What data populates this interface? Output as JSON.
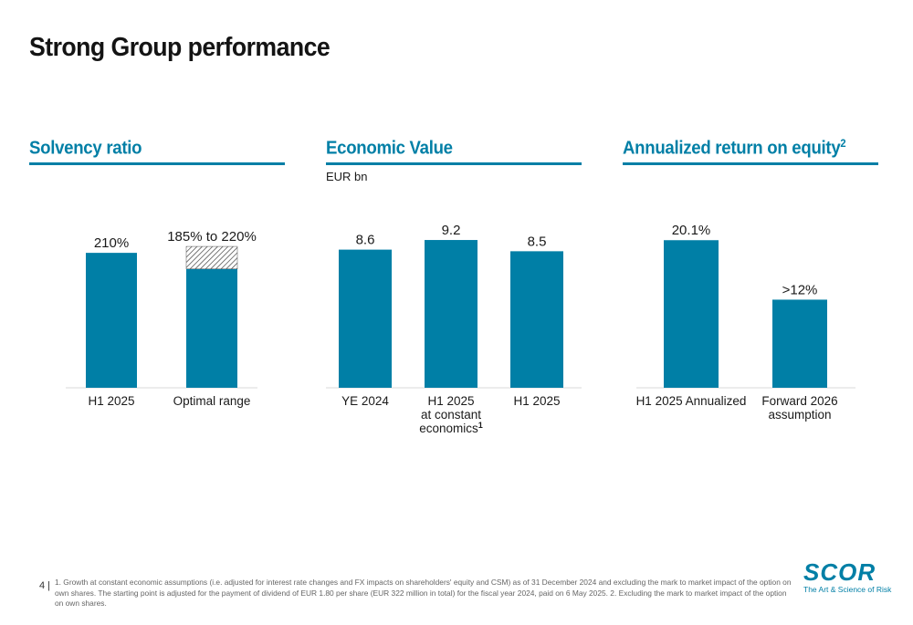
{
  "page": {
    "title": "Strong Group performance",
    "page_number": "4 |",
    "footnote": "1. Growth at constant economic assumptions (i.e. adjusted for interest rate changes and FX impacts on shareholders' equity and CSM) as of 31 December 2024 and excluding the mark to market impact of the option on own shares. The starting point is adjusted for the payment of dividend of EUR 1.80 per share (EUR 322 million in total) for the fiscal year 2024, paid on 6 May 2025. 2. Excluding the mark to market impact of the option on own shares.",
    "logo": {
      "word": "SCOR",
      "tagline": "The Art & Science of Risk"
    }
  },
  "colors": {
    "accent": "#007fa6",
    "bar": "#007fa6",
    "hatch": "#333333"
  },
  "panels": [
    {
      "title": "Solvency ratio",
      "title_sup": "",
      "subtitle": ""
    },
    {
      "title": "Economic Value",
      "title_sup": "",
      "subtitle": "EUR bn"
    },
    {
      "title": "Annualized return on equity",
      "title_sup": "2",
      "subtitle": ""
    }
  ],
  "chart_data": [
    {
      "type": "bar",
      "title": "Solvency ratio",
      "unit": "%",
      "categories": [
        [
          "H1 2025"
        ],
        [
          "Optimal range"
        ]
      ],
      "values": [
        210,
        185
      ],
      "range_high": [
        null,
        220
      ],
      "data_labels": [
        "210%",
        "185% to 220%"
      ],
      "ylim": [
        0,
        240
      ],
      "grid": false
    },
    {
      "type": "bar",
      "title": "Economic Value",
      "unit": "EUR bn",
      "categories": [
        [
          "YE 2024"
        ],
        [
          "H1 2025",
          "at constant",
          "economics"
        ],
        [
          "H1 2025"
        ]
      ],
      "category_sup": [
        "",
        "1",
        ""
      ],
      "values": [
        8.6,
        9.2,
        8.5
      ],
      "data_labels": [
        "8.6",
        "9.2",
        "8.5"
      ],
      "ylim": [
        0,
        9.6
      ],
      "grid": false
    },
    {
      "type": "bar",
      "title": "Annualized return on equity",
      "unit": "%",
      "categories": [
        [
          "H1 2025 Annualized"
        ],
        [
          "Forward 2026",
          "assumption"
        ]
      ],
      "values": [
        20.1,
        12
      ],
      "data_labels": [
        "20.1%",
        ">12%"
      ],
      "ylim": [
        0,
        21
      ],
      "grid": false
    }
  ]
}
